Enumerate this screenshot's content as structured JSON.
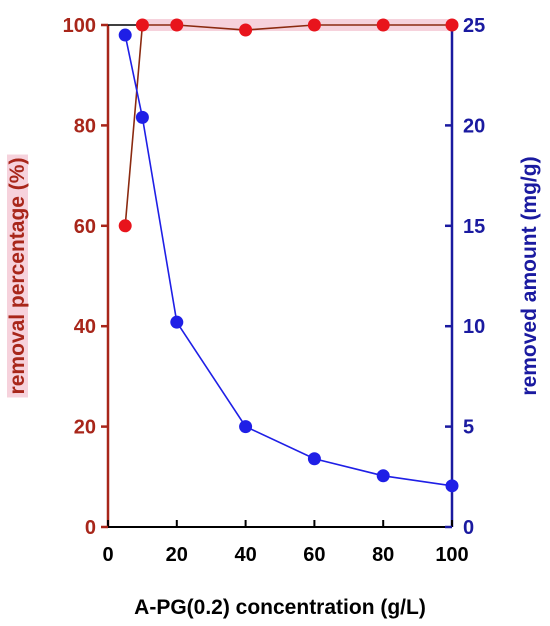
{
  "chart_data": {
    "type": "line",
    "title": "",
    "xlabel": "A-PG(0.2) concentration (g/L)",
    "ylabel_left": "removal percentage (%)",
    "ylabel_right": "removed amount (mg/g)",
    "xlim": [
      0,
      100
    ],
    "ylim_left": [
      0,
      100
    ],
    "ylim_right": [
      0,
      25
    ],
    "x_ticks": [
      "0",
      "20",
      "40",
      "60",
      "80",
      "100"
    ],
    "y_left_ticks": [
      "0",
      "20",
      "40",
      "60",
      "80",
      "100"
    ],
    "y_right_ticks": [
      "0",
      "5",
      "10",
      "15",
      "20",
      "25"
    ],
    "grid": false,
    "legend": "none",
    "series": [
      {
        "axis": "left",
        "color": "#e8141c",
        "line_color": "#8b2a10",
        "x": [
          5,
          10,
          20,
          40,
          60,
          80,
          100
        ],
        "values": [
          60,
          100,
          100,
          99,
          100,
          100,
          100
        ]
      },
      {
        "axis": "right",
        "color": "#1f1fe6",
        "line_color": "#1f1fe6",
        "x": [
          5,
          10,
          20,
          40,
          60,
          80,
          100
        ],
        "values": [
          24.5,
          20.4,
          10.2,
          5,
          3.4,
          2.55,
          2.05
        ]
      }
    ],
    "colors": {
      "left_axis": "#a8261a",
      "right_axis": "#1a1aa0",
      "x_axis": "#000000",
      "label_highlight": "#f6d2dc"
    }
  }
}
